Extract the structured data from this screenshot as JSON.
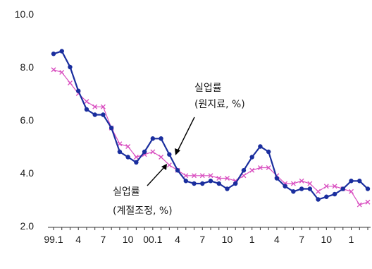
{
  "chart_data": {
    "type": "line",
    "ylim": [
      2.0,
      10.0
    ],
    "y_ticks": [
      "10.0",
      "8.0",
      "6.0",
      "4.0",
      "2.0"
    ],
    "y_tick_values": [
      10.0,
      8.0,
      6.0,
      4.0,
      2.0
    ],
    "x_tick_labels": [
      "99.1",
      "4",
      "7",
      "10",
      "00.1",
      "4",
      "7",
      "10",
      "1",
      "4",
      "7",
      "10",
      "1"
    ],
    "x_tick_indices": [
      0,
      3,
      6,
      9,
      12,
      15,
      18,
      21,
      24,
      27,
      30,
      33,
      36
    ],
    "grid": false,
    "series": [
      {
        "name": "raw",
        "color": "#1a2e9e",
        "marker": "dot",
        "values": [
          8.5,
          8.6,
          8.0,
          7.1,
          6.4,
          6.2,
          6.2,
          5.7,
          4.8,
          4.6,
          4.4,
          4.8,
          5.3,
          5.3,
          4.7,
          4.1,
          3.7,
          3.6,
          3.6,
          3.7,
          3.6,
          3.4,
          3.6,
          4.1,
          4.6,
          5.0,
          4.8,
          3.8,
          3.5,
          3.3,
          3.4,
          3.4,
          3.0,
          3.1,
          3.2,
          3.4,
          3.7,
          3.7,
          3.4
        ]
      },
      {
        "name": "adjusted",
        "color": "#d94fc0",
        "marker": "x",
        "values": [
          7.9,
          7.8,
          7.4,
          7.0,
          6.7,
          6.5,
          6.5,
          5.7,
          5.1,
          5.0,
          4.6,
          4.7,
          4.8,
          4.6,
          4.3,
          4.1,
          3.9,
          3.9,
          3.9,
          3.9,
          3.8,
          3.8,
          3.7,
          3.9,
          4.1,
          4.2,
          4.2,
          3.9,
          3.6,
          3.6,
          3.7,
          3.6,
          3.3,
          3.5,
          3.5,
          3.4,
          3.3,
          2.8,
          2.9
        ]
      }
    ],
    "annotations": [
      {
        "line1": "실업률",
        "line2": "(원지료, %)"
      },
      {
        "line1": "실업률",
        "line2": "(계절조정, %)"
      }
    ]
  }
}
